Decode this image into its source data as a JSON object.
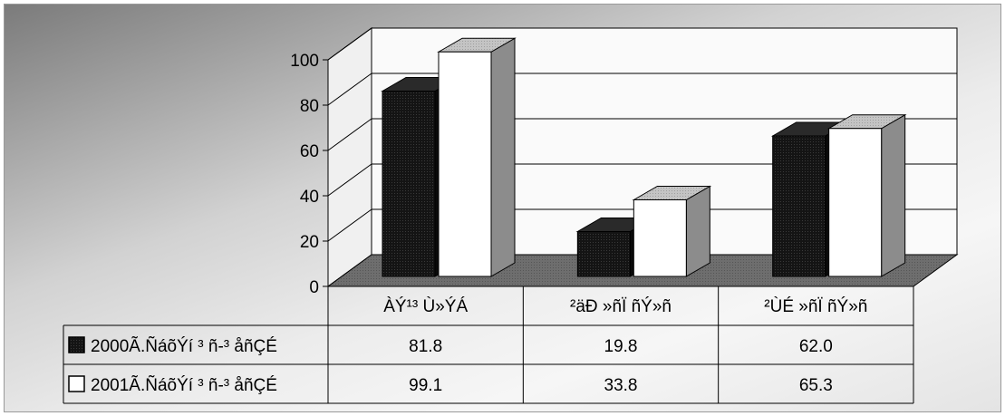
{
  "chart_data": {
    "type": "bar",
    "categories": [
      "ÀÝ¹³ Ù»ÝÁ",
      "²äÐ »ñÏ ñÝ»ñ",
      "²ÙÉ »ñÏ ñÝ»ñ"
    ],
    "series": [
      {
        "name": "2000Ã.ÑáõÝí ³ ñ-³ åñÇÉ",
        "values": [
          81.8,
          19.8,
          62.0
        ],
        "labels": [
          "81.8",
          "19.8",
          "62.0"
        ]
      },
      {
        "name": "2001Ã.ÑáõÝí ³ ñ-³ åñÇÉ",
        "values": [
          99.1,
          33.8,
          65.3
        ],
        "labels": [
          "99.1",
          "33.8",
          "65.3"
        ]
      }
    ],
    "ylim": [
      0,
      100
    ],
    "yticks": [
      "0",
      "20",
      "40",
      "60",
      "80",
      "100"
    ],
    "grid": true,
    "legend": "data-table",
    "colors": {
      "series_0": "#111111",
      "series_1": "#ffffff",
      "floor": "#6b6b6b"
    }
  }
}
